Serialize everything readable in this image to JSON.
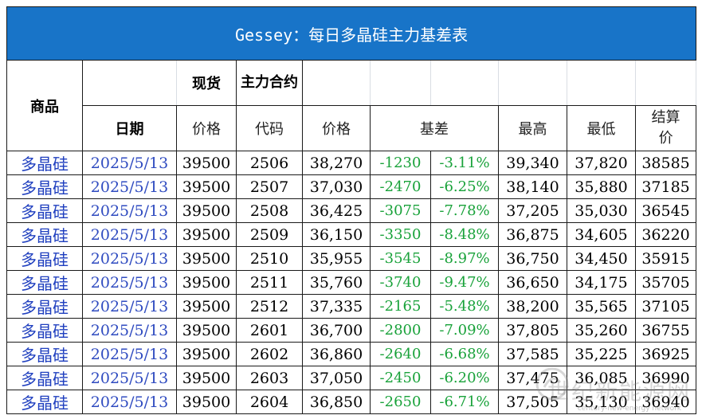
{
  "title": "Gessey：每日多晶硅主力基差表",
  "headers": {
    "product": "商品",
    "spot": "现货",
    "main_contract": "主力合约",
    "date": "日期",
    "price": "价格",
    "code": "代码",
    "price2": "价格",
    "basis": "基差",
    "high": "最高",
    "low": "最低",
    "settle": "结算价"
  },
  "rows": [
    {
      "product": "多晶硅",
      "date": "2025/5/13",
      "spot": "39500",
      "code": "2506",
      "price": "38,270",
      "basis": "-1230",
      "basis_pct": "-3.11%",
      "high": "39,340",
      "low": "37,820",
      "settle": "38585"
    },
    {
      "product": "多晶硅",
      "date": "2025/5/13",
      "spot": "39500",
      "code": "2507",
      "price": "37,030",
      "basis": "-2470",
      "basis_pct": "-6.25%",
      "high": "38,140",
      "low": "35,880",
      "settle": "37185"
    },
    {
      "product": "多晶硅",
      "date": "2025/5/13",
      "spot": "39500",
      "code": "2508",
      "price": "36,425",
      "basis": "-3075",
      "basis_pct": "-7.78%",
      "high": "37,205",
      "low": "35,030",
      "settle": "36545"
    },
    {
      "product": "多晶硅",
      "date": "2025/5/13",
      "spot": "39500",
      "code": "2509",
      "price": "36,150",
      "basis": "-3350",
      "basis_pct": "-8.48%",
      "high": "36,875",
      "low": "34,605",
      "settle": "36220"
    },
    {
      "product": "多晶硅",
      "date": "2025/5/13",
      "spot": "39500",
      "code": "2510",
      "price": "35,955",
      "basis": "-3545",
      "basis_pct": "-8.97%",
      "high": "36,750",
      "low": "34,450",
      "settle": "35915"
    },
    {
      "product": "多晶硅",
      "date": "2025/5/13",
      "spot": "39500",
      "code": "2511",
      "price": "35,760",
      "basis": "-3740",
      "basis_pct": "-9.47%",
      "high": "36,650",
      "low": "34,175",
      "settle": "35705"
    },
    {
      "product": "多晶硅",
      "date": "2025/5/13",
      "spot": "39500",
      "code": "2512",
      "price": "37,335",
      "basis": "-2165",
      "basis_pct": "-5.48%",
      "high": "38,200",
      "low": "35,565",
      "settle": "37105"
    },
    {
      "product": "多晶硅",
      "date": "2025/5/13",
      "spot": "39500",
      "code": "2601",
      "price": "36,700",
      "basis": "-2800",
      "basis_pct": "-7.09%",
      "high": "37,805",
      "low": "35,260",
      "settle": "36755"
    },
    {
      "product": "多晶硅",
      "date": "2025/5/13",
      "spot": "39500",
      "code": "2602",
      "price": "36,860",
      "basis": "-2640",
      "basis_pct": "-6.68%",
      "high": "37,585",
      "low": "35,225",
      "settle": "36925"
    },
    {
      "product": "多晶硅",
      "date": "2025/5/13",
      "spot": "39500",
      "code": "2603",
      "price": "37,050",
      "basis": "-2450",
      "basis_pct": "-6.20%",
      "high": "37,475",
      "low": "36,085",
      "settle": "36990"
    },
    {
      "product": "多晶硅",
      "date": "2025/5/13",
      "spot": "39500",
      "code": "2604",
      "price": "36,850",
      "basis": "-2650",
      "basis_pct": "-6.71%",
      "high": "37,505",
      "low": "35,130",
      "settle": "36940"
    }
  ],
  "watermark": {
    "text": "世纪新能源网",
    "subtext": "century-new-energy network"
  },
  "colors": {
    "title_bg": "#1874c8",
    "product_text": "#1f3fbf",
    "basis_text": "#19a23a"
  }
}
